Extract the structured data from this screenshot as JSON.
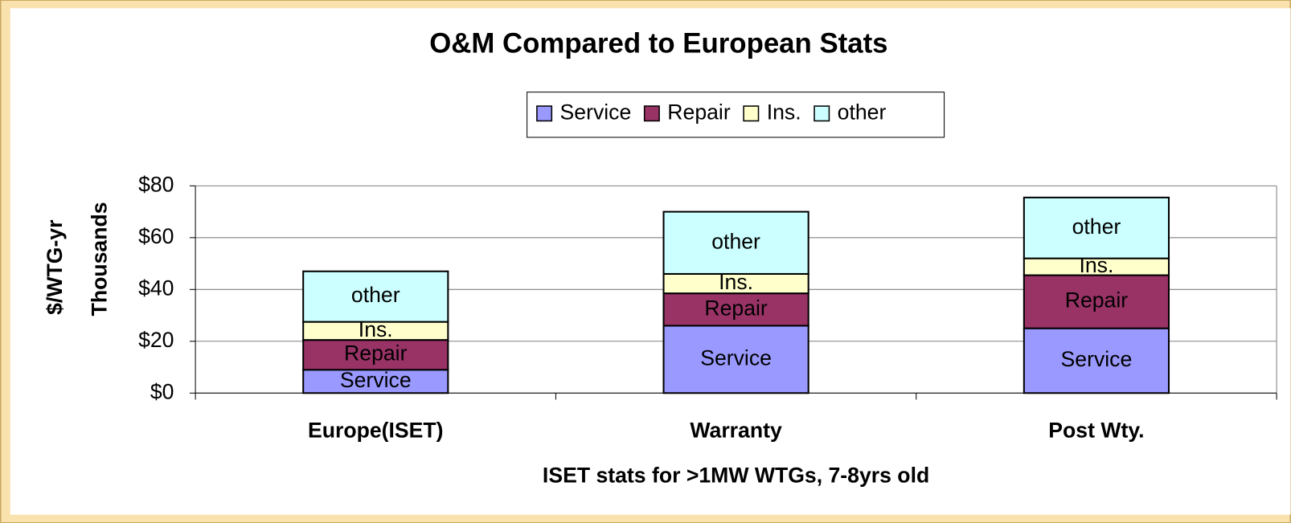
{
  "chart_data": {
    "type": "stacked_bar",
    "title": "O&M Compared to European Stats",
    "ylabel": "$/WTG-yr",
    "yunit_label": "Thousands",
    "xlabel": "ISET stats for >1MW WTGs, 7-8yrs old",
    "categories": [
      "Europe(ISET)",
      "Warranty",
      "Post Wty."
    ],
    "series": [
      {
        "name": "Service",
        "color": "#9999ff",
        "values": [
          9,
          26,
          25
        ]
      },
      {
        "name": "Repair",
        "color": "#993366",
        "values": [
          11.5,
          12.5,
          20.5
        ]
      },
      {
        "name": "Ins.",
        "color": "#ffffcc",
        "values": [
          7,
          7.5,
          6.5
        ]
      },
      {
        "name": "other",
        "color": "#ccffff",
        "values": [
          19.5,
          24,
          23.5
        ]
      }
    ],
    "ylim": [
      0,
      80
    ],
    "yticks": [
      {
        "value": 0,
        "label": "$0"
      },
      {
        "value": 20,
        "label": "$20"
      },
      {
        "value": 40,
        "label": "$40"
      },
      {
        "value": 60,
        "label": "$60"
      },
      {
        "value": 80,
        "label": "$80"
      }
    ],
    "grid": true,
    "legend": "top"
  }
}
